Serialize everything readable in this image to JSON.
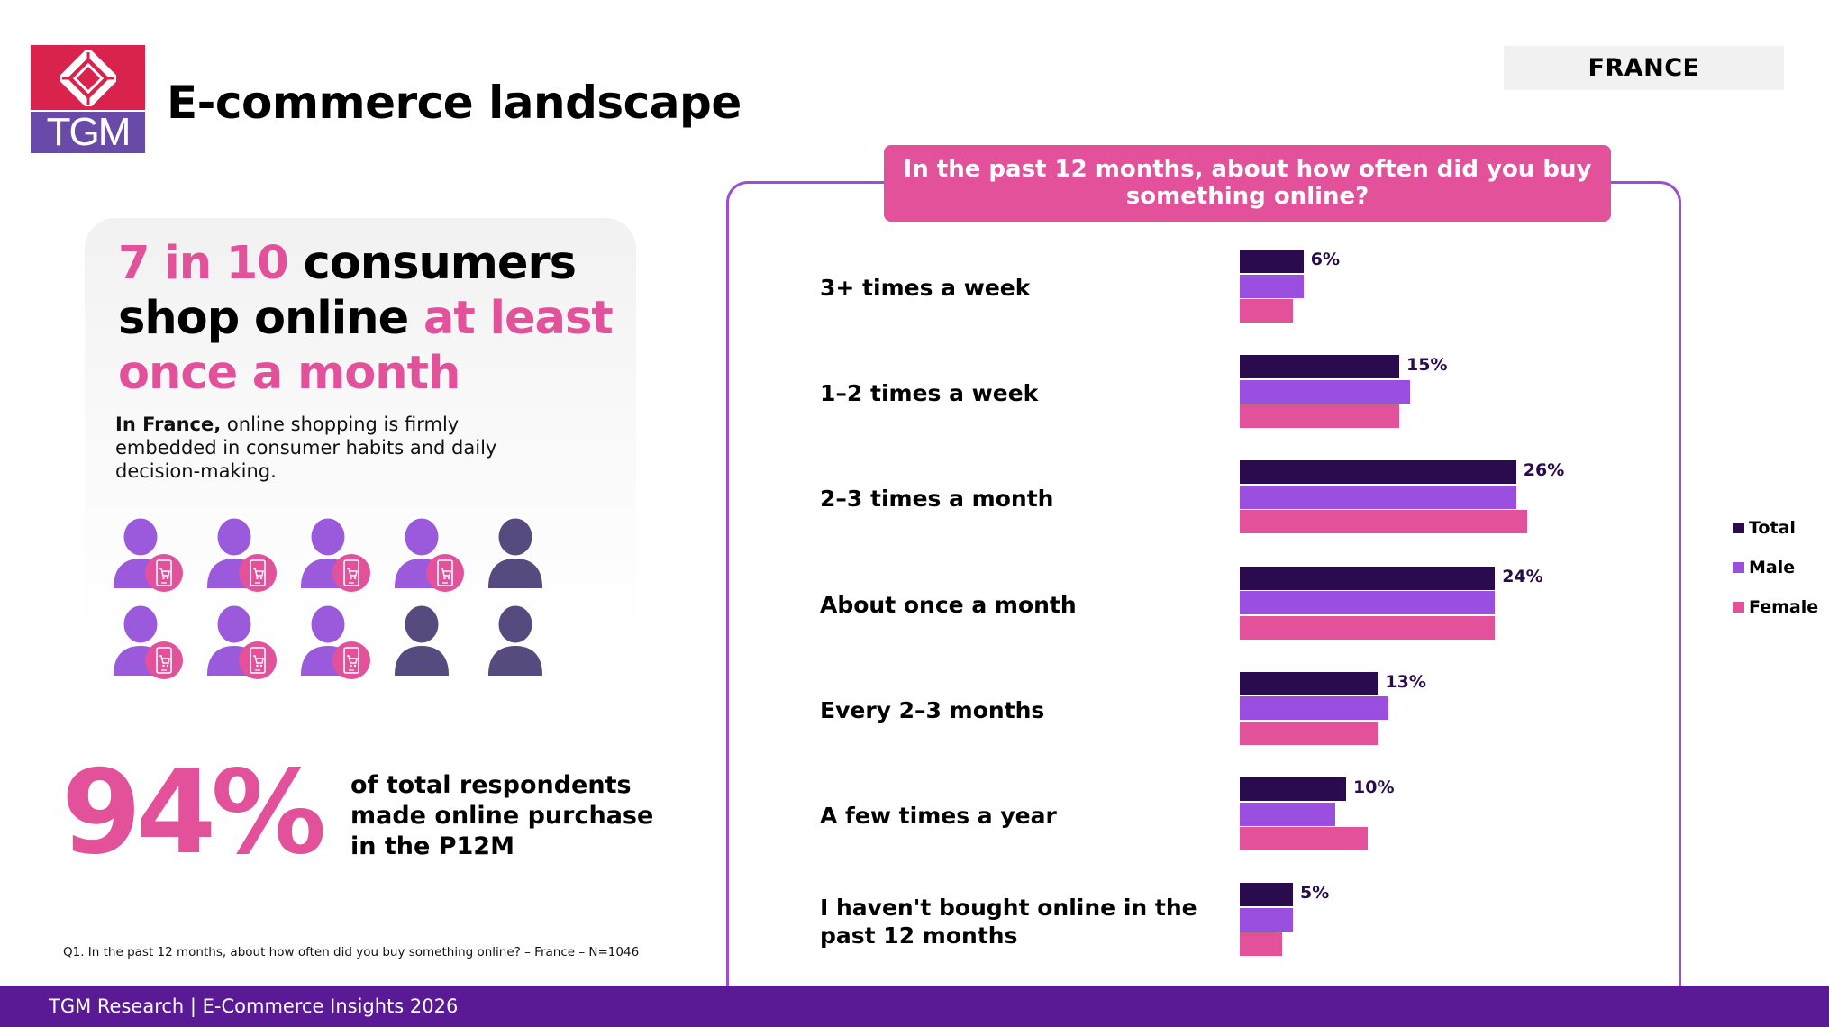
{
  "header": {
    "logo_text": "TGM",
    "title": "E-commerce landscape",
    "country": "FRANCE"
  },
  "insight": {
    "headline_parts": [
      {
        "text": "7 in 10",
        "highlight": true
      },
      {
        "text": " consumers shop online ",
        "highlight": false
      },
      {
        "text": "at least once a month",
        "highlight": true
      }
    ],
    "body_bold": "In France,",
    "body_rest": " online shopping is firmly embedded in consumer habits and daily decision-making.",
    "people_total": 10,
    "people_shoppers": 7
  },
  "stat": {
    "value": "94%",
    "description": "of total respondents made online purchase in the P12M"
  },
  "source_note": "Q1. In the past 12 months, about how often did you buy something online? – France – N=1046",
  "footer": "TGM Research | E-Commerce Insights 2026",
  "colors": {
    "brand_pink": "#e2519a",
    "total": "#2a0c4e",
    "male": "#9b4fe0",
    "female": "#e2519a",
    "person_shopper": "#9b59dc",
    "person_other": "#574a7e",
    "footer": "#5a1a96",
    "panel_border": "#9b4fd6"
  },
  "chart_data": {
    "type": "bar",
    "orientation": "horizontal",
    "title": "In the past 12 months, about how often did you buy something online?",
    "categories": [
      "3+ times a week",
      "1–2 times a week",
      "2–3 times a month",
      "About once a month",
      "Every 2–3 months",
      "A few times a year",
      "I haven't bought online in the past 12 months"
    ],
    "series": [
      {
        "name": "Total",
        "values": [
          6,
          15,
          26,
          24,
          13,
          10,
          5
        ]
      },
      {
        "name": "Male",
        "values": [
          6,
          16,
          26,
          24,
          14,
          9,
          5
        ]
      },
      {
        "name": "Female",
        "values": [
          5,
          15,
          27,
          24,
          13,
          12,
          4
        ]
      }
    ],
    "data_labels": [
      "6%",
      "15%",
      "26%",
      "24%",
      "13%",
      "10%",
      "5%"
    ],
    "data_labels_series": "Total",
    "unit": "%",
    "xlabel": "",
    "ylabel": "",
    "xlim": [
      0,
      30
    ],
    "grid": false,
    "legend": {
      "position": "right",
      "entries": [
        "Total",
        "Male",
        "Female"
      ]
    }
  }
}
